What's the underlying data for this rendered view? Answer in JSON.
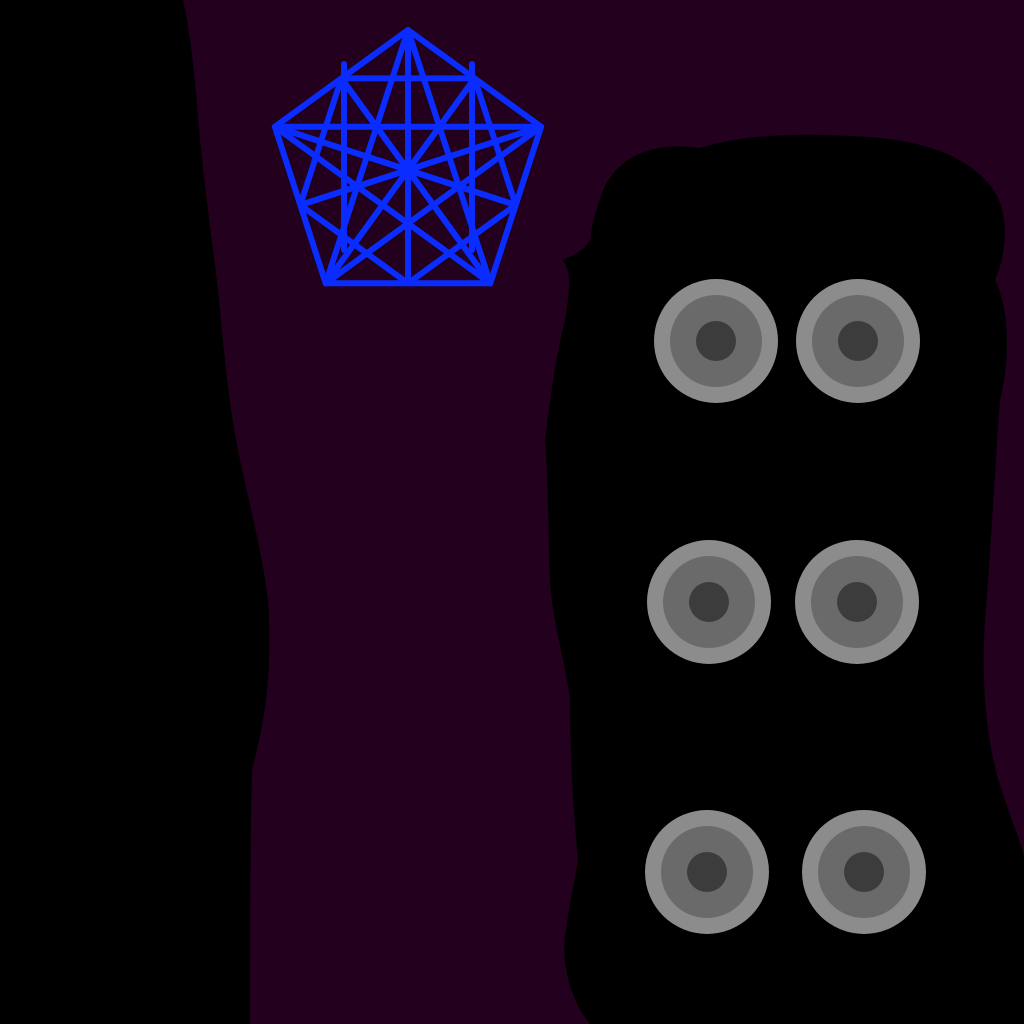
{
  "palette": {
    "background": "#22001e",
    "silhouette": "#000000",
    "emblem_stroke": "#0a2cff",
    "button_outer": "#8c8c8c",
    "button_middle": "#6a6a6a",
    "button_center": "#3c3c3c"
  },
  "emblem": {
    "icon": "pentagon-star-emblem-icon",
    "shape": "pentagon"
  },
  "panel": {
    "icon": "rounded-panel",
    "button_rows": 3,
    "button_columns": 2,
    "button_icon": "round-knob-icon"
  }
}
